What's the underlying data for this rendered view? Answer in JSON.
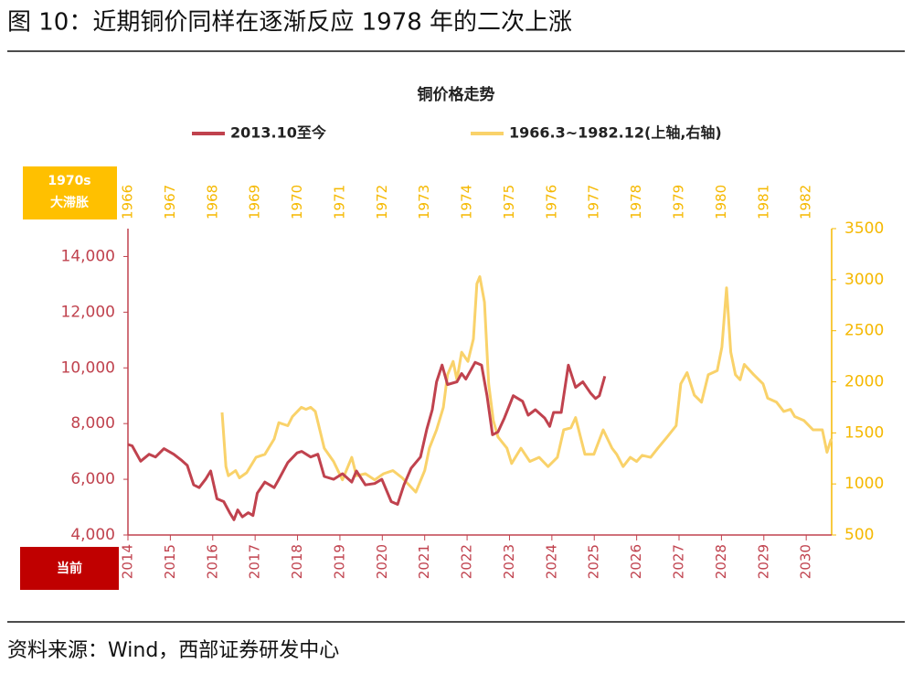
{
  "header": {
    "title": "图 10：近期铜价同样在逐渐反应 1978 年的二次上涨"
  },
  "footer": {
    "source": "资料来源：Wind，西部证券研发中心"
  },
  "chart_data": {
    "type": "line",
    "title": "铜价格走势",
    "annotations": [
      "1970s",
      "大滞胀",
      "当前"
    ],
    "xlim": [
      2014,
      2030.6
    ],
    "xticks": [
      2014,
      2015,
      2016,
      2017,
      2018,
      2019,
      2020,
      2021,
      2022,
      2023,
      2024,
      2025,
      2026,
      2027,
      2028,
      2029,
      2030
    ],
    "x2lim": [
      1966,
      1982.6
    ],
    "x2ticks": [
      1966,
      1967,
      1968,
      1969,
      1970,
      1971,
      1972,
      1973,
      1974,
      1975,
      1976,
      1977,
      1978,
      1979,
      1980,
      1981,
      1982
    ],
    "ylim": [
      4000,
      15000
    ],
    "yticks": [
      {
        "value": 4000,
        "label": "4,000"
      },
      {
        "value": 6000,
        "label": "6,000"
      },
      {
        "value": 8000,
        "label": "8,000"
      },
      {
        "value": 10000,
        "label": "10,000"
      },
      {
        "value": 12000,
        "label": "12,000"
      },
      {
        "value": 14000,
        "label": "14,000"
      }
    ],
    "y2lim": [
      500,
      3500
    ],
    "y2ticks": [
      500,
      1000,
      1500,
      2000,
      2500,
      3000,
      3500
    ],
    "series": [
      {
        "name": "2013.10至今",
        "color": "#c0424e",
        "axis": "y",
        "x": [
          2014.0,
          2014.1,
          2014.3,
          2014.5,
          2014.65,
          2014.85,
          2015.08,
          2015.25,
          2015.4,
          2015.55,
          2015.68,
          2015.83,
          2015.95,
          2016.1,
          2016.26,
          2016.4,
          2016.5,
          2016.59,
          2016.7,
          2016.84,
          2016.95,
          2017.05,
          2017.23,
          2017.45,
          2017.56,
          2017.77,
          2017.99,
          2018.1,
          2018.31,
          2018.48,
          2018.63,
          2018.85,
          2019.06,
          2019.28,
          2019.39,
          2019.6,
          2019.82,
          2019.99,
          2020.21,
          2020.36,
          2020.51,
          2020.68,
          2020.9,
          2021.05,
          2021.18,
          2021.28,
          2021.41,
          2021.54,
          2021.76,
          2021.87,
          2021.97,
          2022.19,
          2022.34,
          2022.47,
          2022.6,
          2022.73,
          2022.88,
          2023.09,
          2023.31,
          2023.44,
          2023.61,
          2023.83,
          2023.95,
          2024.04,
          2024.22,
          2024.39,
          2024.56,
          2024.73,
          2024.91,
          2025.03,
          2025.12,
          2025.25
        ],
        "values": [
          7250,
          7200,
          6650,
          6900,
          6800,
          7100,
          6900,
          6700,
          6500,
          5800,
          5700,
          6000,
          6300,
          5300,
          5200,
          4800,
          4550,
          4900,
          4650,
          4800,
          4700,
          5500,
          5900,
          5700,
          6000,
          6600,
          6950,
          7000,
          6800,
          6900,
          6100,
          6000,
          6200,
          5900,
          6300,
          5800,
          5850,
          6000,
          5200,
          5100,
          5800,
          6400,
          6800,
          7800,
          8500,
          9500,
          10100,
          9400,
          9500,
          9800,
          9600,
          10200,
          10100,
          9000,
          7600,
          7700,
          8200,
          9000,
          8800,
          8300,
          8500,
          8200,
          7900,
          8400,
          8400,
          10100,
          9300,
          9500,
          9100,
          8900,
          9000,
          9700
        ]
      },
      {
        "name": "1966.3~1982.12(上轴,右轴)",
        "color": "#f9d26a",
        "axis": "y2",
        "xaxis": "x2",
        "x": [
          1968.22,
          1968.31,
          1968.37,
          1968.54,
          1968.63,
          1968.8,
          1969.02,
          1969.23,
          1969.45,
          1969.56,
          1969.77,
          1969.88,
          1970.09,
          1970.2,
          1970.31,
          1970.42,
          1970.63,
          1970.85,
          1971.06,
          1971.28,
          1971.39,
          1971.6,
          1971.82,
          1972.03,
          1972.25,
          1972.47,
          1972.79,
          1973.0,
          1973.11,
          1973.28,
          1973.44,
          1973.54,
          1973.67,
          1973.76,
          1973.87,
          1974.02,
          1974.15,
          1974.23,
          1974.3,
          1974.41,
          1974.51,
          1974.62,
          1974.73,
          1974.94,
          1975.05,
          1975.27,
          1975.48,
          1975.7,
          1975.91,
          1976.13,
          1976.28,
          1976.45,
          1976.56,
          1976.78,
          1976.99,
          1977.21,
          1977.42,
          1977.53,
          1977.68,
          1977.85,
          1978.0,
          1978.13,
          1978.33,
          1978.5,
          1978.72,
          1978.93,
          1979.04,
          1979.19,
          1979.36,
          1979.53,
          1979.69,
          1979.9,
          1980.01,
          1980.12,
          1980.22,
          1980.33,
          1980.44,
          1980.54,
          1980.76,
          1980.98,
          1981.09,
          1981.3,
          1981.47,
          1981.63,
          1981.73,
          1981.95,
          1982.16,
          1982.38,
          1982.49,
          1982.59
        ],
        "values": [
          1700,
          1170,
          1080,
          1130,
          1060,
          1110,
          1260,
          1290,
          1440,
          1600,
          1570,
          1660,
          1750,
          1730,
          1750,
          1710,
          1350,
          1220,
          1040,
          1260,
          1080,
          1100,
          1040,
          1100,
          1130,
          1060,
          920,
          1130,
          1350,
          1530,
          1750,
          2070,
          2200,
          2020,
          2290,
          2200,
          2420,
          2960,
          3030,
          2780,
          1980,
          1620,
          1460,
          1350,
          1200,
          1350,
          1220,
          1260,
          1170,
          1260,
          1530,
          1550,
          1650,
          1290,
          1290,
          1530,
          1350,
          1290,
          1170,
          1260,
          1220,
          1280,
          1260,
          1350,
          1460,
          1570,
          1980,
          2090,
          1870,
          1800,
          2070,
          2110,
          2340,
          2920,
          2290,
          2070,
          2020,
          2170,
          2070,
          1980,
          1840,
          1800,
          1710,
          1730,
          1660,
          1620,
          1530,
          1530,
          1310,
          1440
        ]
      }
    ]
  }
}
